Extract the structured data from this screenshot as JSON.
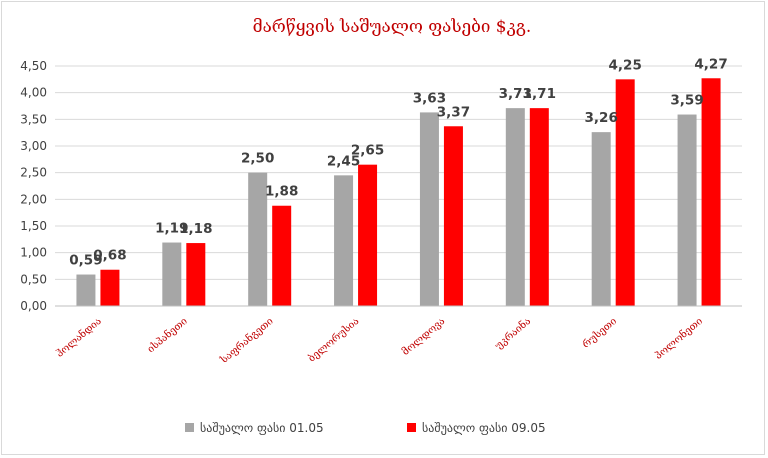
{
  "chart_data": {
    "type": "bar",
    "title": "მარწყვის საშუალო ფასები $კგ.",
    "categories": [
      "ჰოლანდია",
      "ისპანეთი",
      "საფრანგეთი",
      "ბელორუსია",
      "მოლდოვა",
      "უკრაინა",
      "რუსეთი",
      "პოლონეთი"
    ],
    "series": [
      {
        "name": "საშუალო ფასი 01.05",
        "values": [
          0.59,
          1.19,
          2.5,
          2.45,
          3.63,
          3.71,
          3.26,
          3.59
        ],
        "labels": [
          "0,59",
          "1,19",
          "2,50",
          "2,45",
          "3,63",
          "3,71",
          "3,26",
          "3,59"
        ]
      },
      {
        "name": "საშუალო ფასი 09.05",
        "values": [
          0.68,
          1.18,
          1.88,
          2.65,
          3.37,
          3.71,
          4.25,
          4.27
        ],
        "labels": [
          "0,68",
          "1,18",
          "1,88",
          "2,65",
          "3,37",
          "3,71",
          "4,25",
          "4,27"
        ]
      }
    ],
    "ylim": [
      0,
      4.5
    ],
    "yticks": [
      "0,00",
      "0,50",
      "1,00",
      "1,50",
      "2,00",
      "2,50",
      "3,00",
      "3,50",
      "4,00",
      "4,50"
    ],
    "grid": true,
    "legend_position": "bottom",
    "colors": {
      "series1": "#a6a6a6",
      "series2": "#ff0000",
      "title": "#c00000",
      "categories": "#c00000",
      "grid": "#d9d9d9"
    }
  }
}
